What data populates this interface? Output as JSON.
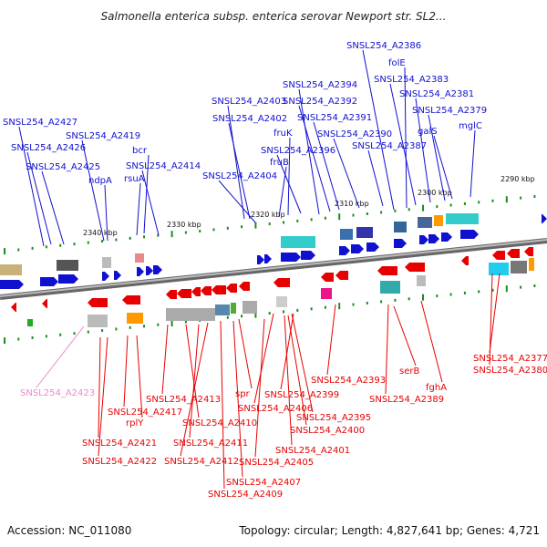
{
  "title": "Salmonella enterica subsp. enterica serovar Newport str. SL2...",
  "footer": {
    "accession": "Accession: NC_011080",
    "topology": "Topology: circular; Length: 4,827,641 bp; Genes: 4,721"
  },
  "colors": {
    "forward": "#1010d0",
    "reverse": "#e80000",
    "pseudo": "#ee88cc",
    "backbone": "#888888",
    "tick": "#1a8f1a"
  },
  "scale_labels": [
    "2290 kbp",
    "2300 kbp",
    "2310 kbp",
    "2320 kbp",
    "2330 kbp",
    "2340 kbp"
  ],
  "top_labels": [
    "SNSL254_A2386",
    "folE",
    "SNSL254_A2383",
    "SNSL254_A2381",
    "SNSL254_A2394",
    "SNSL254_A2403",
    "SNSL254_A2392",
    "SNSL254_A2379",
    "SNSL254_A2402",
    "SNSL254_A2391",
    "SNSL254_A2427",
    "galS",
    "mglC",
    "fruK",
    "SNSL254_A2390",
    "SNSL254_A2419",
    "SNSL254_A2426",
    "SNSL254_A2396",
    "SNSL254_A2387",
    "bcr",
    "fruB",
    "SNSL254_A2425",
    "SNSL254_A2414",
    "rsuA",
    "ndpA",
    "SNSL254_A2404"
  ],
  "bottom_labels": [
    "SNSL254_A2377",
    "SNSL254_A2380",
    "SNSL254_A2393",
    "serB",
    "fghA",
    "SNSL254_A2423",
    "spr",
    "SNSL254_A2399",
    "SNSL254_A2389",
    "SNSL254_A2413",
    "SNSL254_A2406",
    "SNSL254_A2417",
    "SNSL254_A2395",
    "rplY",
    "SNSL254_A2410",
    "SNSL254_A2400",
    "SNSL254_A2421",
    "SNSL254_A2411",
    "SNSL254_A2401",
    "SNSL254_A2422",
    "SNSL254_A2412",
    "SNSL254_A2405",
    "SNSL254_A2407",
    "SNSL254_A2409"
  ],
  "pseudo_labels": [
    "SNSL254_A2423"
  ]
}
